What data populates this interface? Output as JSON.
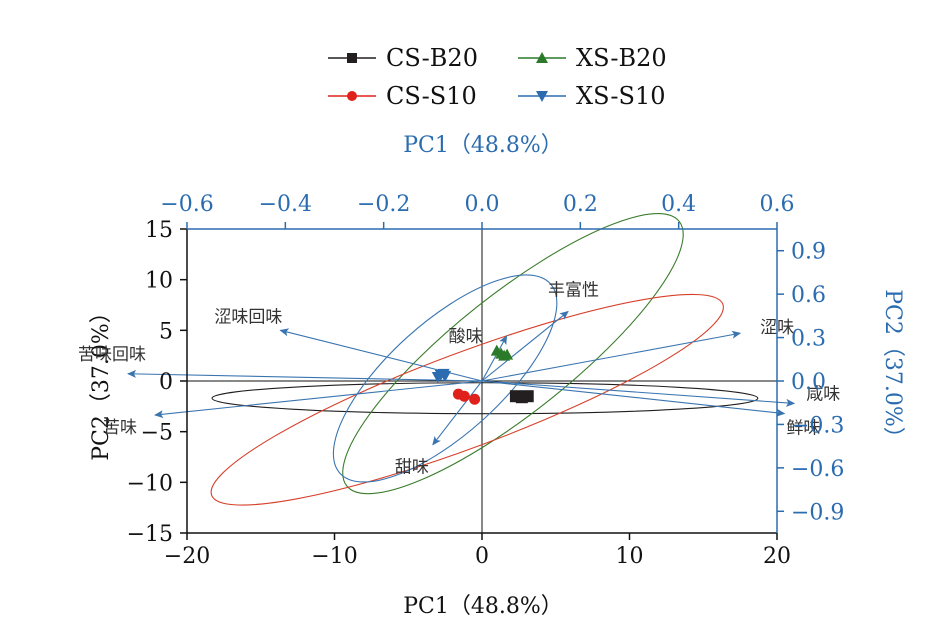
{
  "chart_data": {
    "type": "scatter",
    "title": "",
    "bottom_axis": {
      "label": "PC1（48.8%）",
      "range": [
        -20,
        20
      ],
      "ticks": [
        -20,
        -10,
        0,
        10,
        20
      ]
    },
    "left_axis": {
      "label": "PC2（37.0%）",
      "range": [
        -15,
        15
      ],
      "ticks": [
        -15,
        -10,
        -5,
        0,
        5,
        10,
        15
      ]
    },
    "top_axis": {
      "label": "PC1（48.8%）",
      "range": [
        -0.6,
        0.6
      ],
      "ticks": [
        -0.6,
        -0.4,
        -0.2,
        0.0,
        0.2,
        0.4,
        0.6
      ],
      "tick_labels": [
        "−0.6",
        "−0.4",
        "−0.2",
        "0.0",
        "0.2",
        "0.4",
        "0.6"
      ]
    },
    "right_axis": {
      "label": "PC2（37.0%）",
      "range": [
        -1.05,
        1.05
      ],
      "ticks": [
        0.9,
        0.6,
        0.3,
        0.0,
        -0.3,
        -0.6,
        -0.9
      ],
      "tick_labels": [
        "0.9",
        "0.6",
        "0.3",
        "0.0",
        "−0.3",
        "−0.6",
        "−0.9"
      ]
    },
    "left_tick_labels": [
      "−15",
      "−10",
      "−5",
      "0",
      "5",
      "10",
      "15"
    ],
    "bottom_tick_labels": [
      "−20",
      "−10",
      "0",
      "10",
      "20"
    ],
    "series": [
      {
        "name": "CS-B20",
        "marker": "square",
        "color": "#231f20",
        "points": [
          [
            2.3,
            -1.5
          ],
          [
            2.7,
            -1.6
          ],
          [
            3.1,
            -1.5
          ]
        ],
        "ellipse": {
          "cx": 0.2,
          "cy": -1.7,
          "rx": 18.5,
          "ry": 1.05,
          "angle": 0,
          "color": "#231f20"
        }
      },
      {
        "name": "XS-B20",
        "marker": "triangle-up",
        "color": "#2a7a2a",
        "points": [
          [
            1.0,
            3.0
          ],
          [
            1.3,
            2.7
          ],
          [
            1.5,
            2.5
          ],
          [
            1.7,
            2.6
          ]
        ],
        "ellipse": {
          "cx": 2.1,
          "cy": 2.7,
          "rx": 14.4,
          "ry": 4.0,
          "angle": -38.5,
          "color": "#3a7d2c"
        }
      },
      {
        "name": "CS-S10",
        "marker": "circle",
        "color": "#e0201b",
        "points": [
          [
            -1.6,
            -1.3
          ],
          [
            -1.2,
            -1.5
          ],
          [
            -0.5,
            -1.8
          ]
        ],
        "ellipse": {
          "cx": -1.0,
          "cy": -1.85,
          "rx": 18.5,
          "ry": 3.2,
          "angle": -20.5,
          "color": "#d6402a"
        }
      },
      {
        "name": "XS-S10",
        "marker": "triangle-down",
        "color": "#2b6cb0",
        "points": [
          [
            -3.0,
            0.4
          ],
          [
            -2.8,
            0.6
          ],
          [
            -2.5,
            0.5
          ],
          [
            -2.6,
            0.7
          ]
        ],
        "ellipse": {
          "cx": -2.5,
          "cy": 0.25,
          "rx": 9.6,
          "ry": 3.8,
          "angle": -42,
          "color": "#3a75b0"
        }
      }
    ],
    "loadings": {
      "color": "#3a75b0",
      "vectors": [
        {
          "label": "丰富性",
          "x": 0.175,
          "y": 0.48
        },
        {
          "label": "涩味",
          "x": 0.525,
          "y": 0.33
        },
        {
          "label": "咸味",
          "x": 0.635,
          "y": -0.155
        },
        {
          "label": "鲜味",
          "x": 0.615,
          "y": -0.225
        },
        {
          "label": "甜味",
          "x": -0.1,
          "y": -0.44
        },
        {
          "label": "苦味",
          "x": -0.665,
          "y": -0.235
        },
        {
          "label": "苦味回味",
          "x": -0.72,
          "y": 0.05
        },
        {
          "label": "涩味回味",
          "x": -0.41,
          "y": 0.35
        },
        {
          "label": "酸味",
          "x": 0.05,
          "y": 0.31
        }
      ]
    },
    "legend": {
      "placement": "top"
    }
  }
}
